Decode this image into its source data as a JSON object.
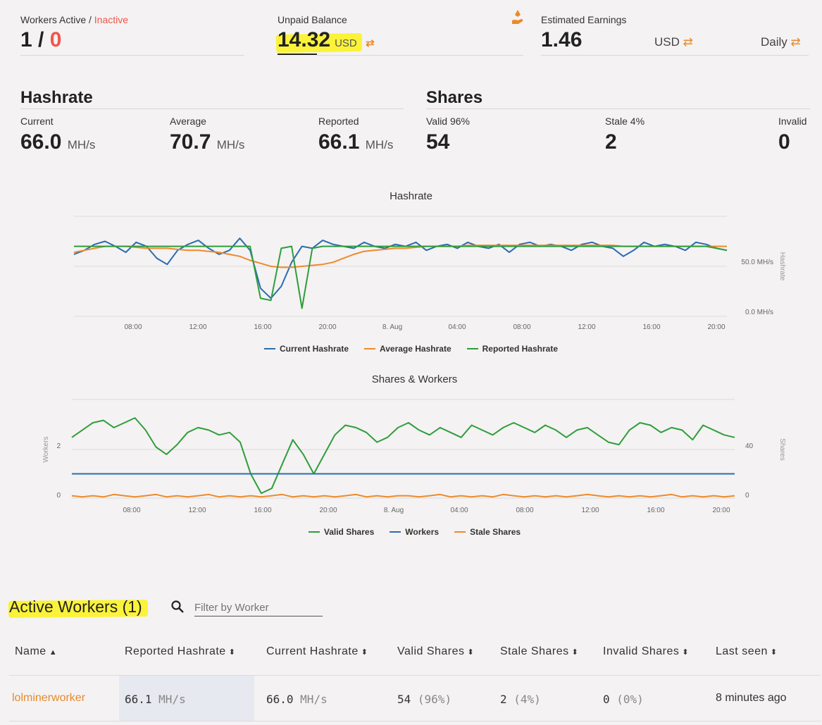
{
  "top": {
    "workers_label": "Workers Active",
    "workers_sep": "/",
    "workers_inactive_label": "Inactive",
    "workers_active": "1",
    "workers_slash": "/",
    "workers_inactive": "0",
    "unpaid_label": "Unpaid Balance",
    "unpaid_value": "14.32",
    "unpaid_unit": "USD",
    "est_label": "Estimated Earnings",
    "est_value": "1.46",
    "est_unit": "USD",
    "est_period": "Daily"
  },
  "hashrate": {
    "title": "Hashrate",
    "current_label": "Current",
    "current_value": "66.0",
    "average_label": "Average",
    "average_value": "70.7",
    "reported_label": "Reported",
    "reported_value": "66.1",
    "unit": "MH/s"
  },
  "shares": {
    "title": "Shares",
    "valid_label": "Valid 96%",
    "valid_value": "54",
    "stale_label": "Stale 4%",
    "stale_value": "2",
    "invalid_label": "Invalid",
    "invalid_value": "0"
  },
  "chart_data": [
    {
      "type": "line",
      "title": "Hashrate",
      "ylabel": "Hashrate",
      "x_ticks": [
        "08:00",
        "12:00",
        "16:00",
        "20:00",
        "8. Aug",
        "04:00",
        "08:00",
        "12:00",
        "16:00",
        "20:00"
      ],
      "y_ticks": [
        "0.0 MH/s",
        "50.0 MH/s"
      ],
      "ylim": [
        0,
        100
      ],
      "series": [
        {
          "name": "Current Hashrate",
          "color": "#2b6cb0",
          "values": [
            62,
            66,
            72,
            75,
            70,
            64,
            74,
            70,
            58,
            52,
            66,
            72,
            76,
            68,
            62,
            66,
            78,
            66,
            28,
            18,
            30,
            54,
            70,
            68,
            76,
            72,
            70,
            68,
            74,
            70,
            68,
            72,
            70,
            74,
            66,
            70,
            72,
            68,
            74,
            70,
            68,
            72,
            64,
            72,
            74,
            70,
            72,
            70,
            66,
            72,
            74,
            70,
            68,
            60,
            66,
            74,
            70,
            72,
            70,
            66,
            74,
            72,
            68,
            66
          ]
        },
        {
          "name": "Average Hashrate",
          "color": "#ed8a2c",
          "values": [
            64,
            66,
            68,
            70,
            70,
            70,
            69,
            68,
            68,
            68,
            67,
            66,
            66,
            65,
            64,
            62,
            60,
            56,
            53,
            50,
            49,
            49,
            50,
            51,
            52,
            54,
            58,
            62,
            65,
            66,
            67,
            68,
            68,
            69,
            70,
            70,
            70,
            70,
            71,
            71,
            71,
            71,
            71,
            71,
            71,
            71,
            71,
            71,
            71,
            71,
            71,
            71,
            71,
            70,
            70,
            70,
            70,
            70,
            70,
            70,
            70,
            70,
            70,
            70
          ]
        },
        {
          "name": "Reported Hashrate",
          "color": "#2e9e3a",
          "values": [
            70,
            70,
            70,
            70,
            70,
            70,
            70,
            70,
            70,
            70,
            70,
            70,
            70,
            70,
            70,
            70,
            70,
            70,
            18,
            16,
            68,
            70,
            8,
            68,
            70,
            70,
            70,
            70,
            70,
            70,
            70,
            70,
            70,
            70,
            70,
            70,
            70,
            70,
            70,
            70,
            70,
            70,
            70,
            70,
            70,
            70,
            70,
            70,
            70,
            70,
            70,
            70,
            70,
            70,
            70,
            70,
            70,
            70,
            70,
            70,
            70,
            70,
            68,
            66
          ]
        }
      ]
    },
    {
      "type": "line",
      "title": "Shares & Workers",
      "ylabel_left": "Workers",
      "ylabel_right": "Shares",
      "x_ticks": [
        "08:00",
        "12:00",
        "16:00",
        "20:00",
        "8. Aug",
        "04:00",
        "08:00",
        "12:00",
        "16:00",
        "20:00"
      ],
      "y_ticks_left": [
        "0",
        "2"
      ],
      "y_ticks_right": [
        "0",
        "40"
      ],
      "series": [
        {
          "name": "Valid Shares",
          "axis": "right",
          "color": "#2e9e3a",
          "values": [
            50,
            56,
            62,
            64,
            58,
            62,
            66,
            56,
            42,
            36,
            44,
            54,
            58,
            56,
            52,
            54,
            46,
            20,
            4,
            8,
            28,
            48,
            36,
            20,
            36,
            52,
            60,
            58,
            54,
            46,
            50,
            58,
            62,
            56,
            52,
            58,
            54,
            50,
            60,
            56,
            52,
            58,
            62,
            58,
            54,
            60,
            56,
            50,
            56,
            58,
            52,
            46,
            44,
            56,
            62,
            60,
            54,
            58,
            56,
            48,
            60,
            56,
            52,
            50
          ]
        },
        {
          "name": "Workers",
          "axis": "left",
          "color": "#2b6cb0",
          "values": [
            1,
            1,
            1,
            1,
            1,
            1,
            1,
            1,
            1,
            1,
            1,
            1,
            1,
            1,
            1,
            1,
            1,
            1,
            1,
            1,
            1,
            1,
            1,
            1,
            1,
            1,
            1,
            1,
            1,
            1,
            1,
            1,
            1,
            1,
            1,
            1,
            1,
            1,
            1,
            1,
            1,
            1,
            1,
            1,
            1,
            1,
            1,
            1,
            1,
            1,
            1,
            1,
            1,
            1,
            1,
            1,
            1,
            1,
            1,
            1,
            1,
            1,
            1,
            1
          ]
        },
        {
          "name": "Stale Shares",
          "axis": "right",
          "color": "#ed8a2c",
          "values": [
            2,
            1,
            2,
            1,
            3,
            2,
            1,
            2,
            3,
            1,
            2,
            1,
            2,
            3,
            1,
            2,
            1,
            2,
            1,
            2,
            3,
            1,
            2,
            1,
            2,
            1,
            2,
            3,
            1,
            2,
            1,
            2,
            2,
            1,
            2,
            3,
            1,
            2,
            1,
            2,
            1,
            3,
            2,
            1,
            2,
            1,
            2,
            1,
            2,
            3,
            2,
            1,
            2,
            1,
            2,
            1,
            2,
            3,
            1,
            2,
            1,
            2,
            1,
            2
          ]
        }
      ]
    }
  ],
  "workers": {
    "title": "Active Workers (1)",
    "filter_placeholder": "Filter by Worker",
    "columns": [
      "Name",
      "Reported Hashrate",
      "Current Hashrate",
      "Valid Shares",
      "Stale Shares",
      "Invalid Shares",
      "Last seen"
    ],
    "rows": [
      {
        "name": "lolminerworker",
        "reported": "66.1",
        "current": "66.0",
        "unit": "MH/s",
        "valid": "54",
        "valid_pct": "(96%)",
        "stale": "2",
        "stale_pct": "(4%)",
        "invalid": "0",
        "invalid_pct": "(0%)",
        "last_seen": "8 minutes ago"
      }
    ]
  },
  "colors": {
    "accent": "#e98a2a",
    "inactive": "#f0564a",
    "highlight": "#fbf33a"
  }
}
